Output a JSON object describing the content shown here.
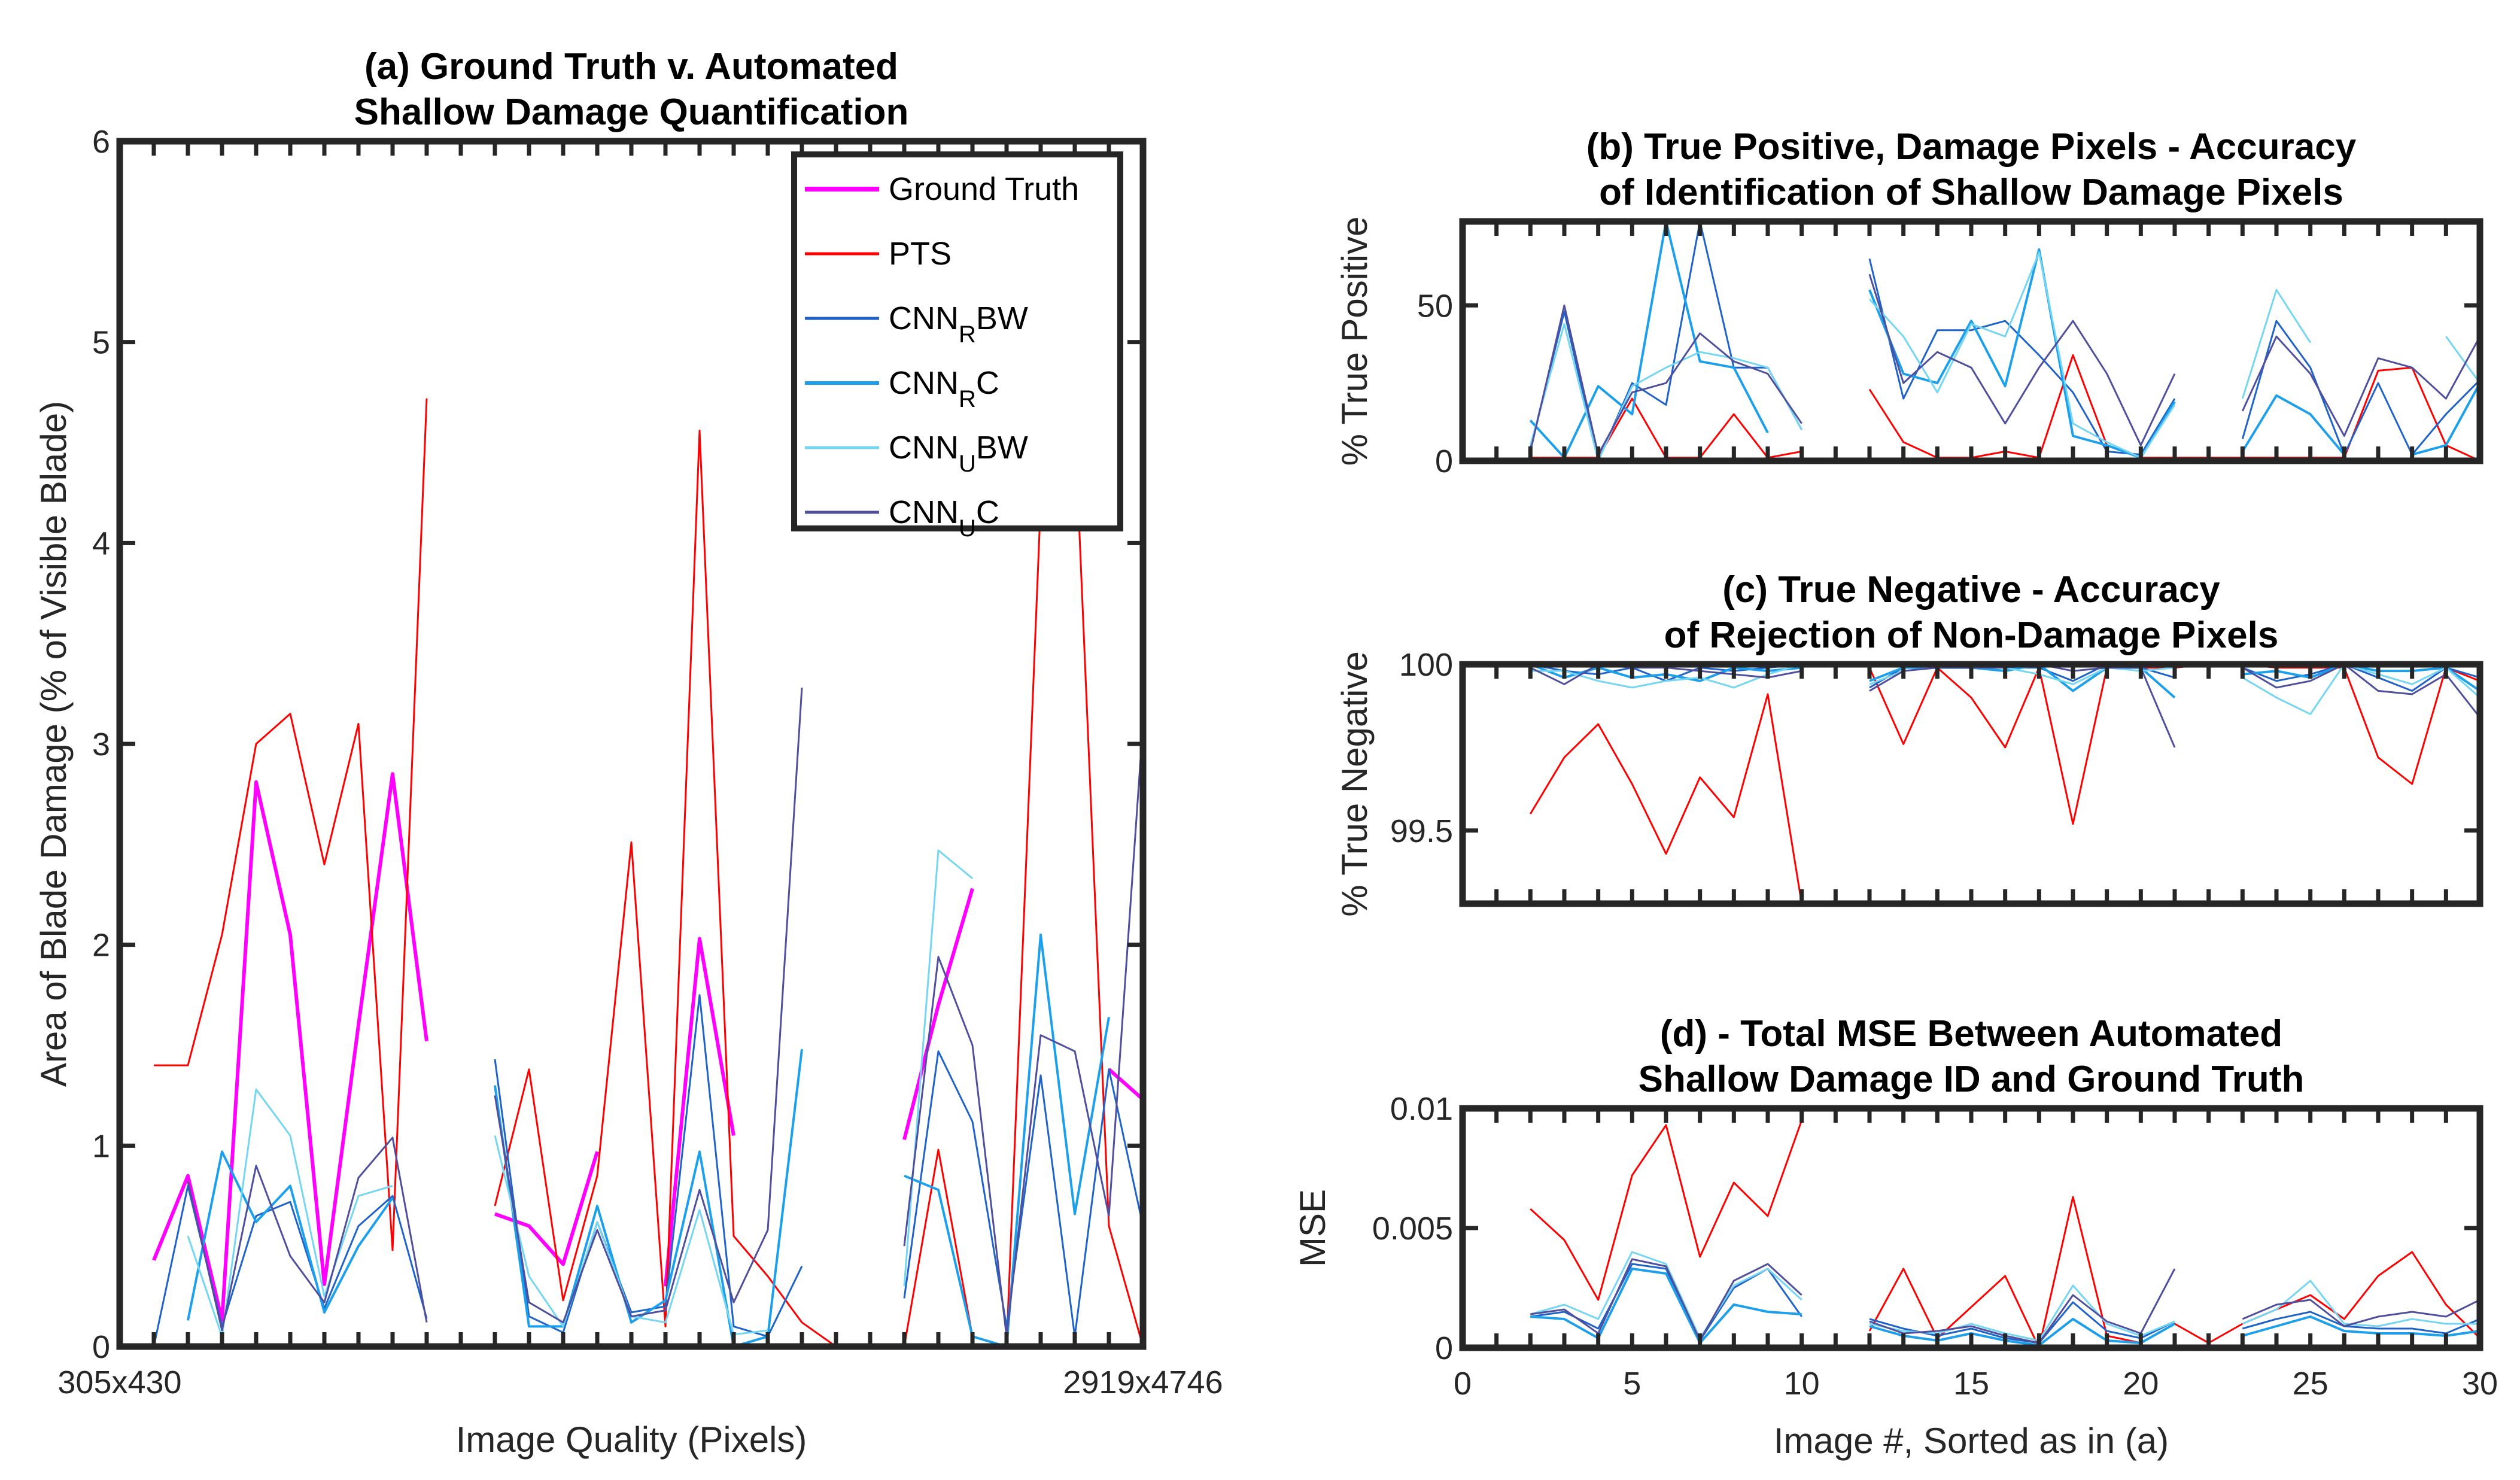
{
  "chart_data": [
    {
      "id": "a",
      "type": "line",
      "title": [
        "(a) Ground Truth v. Automated",
        "Shallow Damage Quantification"
      ],
      "xlabel": "Image Quality (Pixels)",
      "ylabel": "Area of Blade Damage (% of Visible Blade)",
      "xtick_labels": [
        "305x430",
        "2919x4746"
      ],
      "xlim": [
        0,
        30
      ],
      "ylim": [
        0,
        6
      ],
      "yticks": [
        0,
        1,
        2,
        3,
        4,
        5,
        6
      ],
      "legend_position": "top-right",
      "x": [
        1,
        2,
        3,
        4,
        5,
        6,
        7,
        8,
        9,
        10,
        11,
        12,
        13,
        14,
        15,
        16,
        17,
        18,
        19,
        20,
        21,
        22,
        23,
        24,
        25,
        26,
        27,
        28,
        29,
        30
      ],
      "series": [
        {
          "name": "Ground Truth",
          "legend": [
            "Ground Truth",
            ""
          ],
          "color": "#ff00ff",
          "width": 3,
          "values": [
            0.43,
            0.85,
            0.13,
            2.81,
            2.05,
            0.31,
            1.6,
            2.85,
            1.52,
            null,
            0.66,
            0.6,
            0.41,
            0.97,
            null,
            0.3,
            2.03,
            1.05,
            null,
            null,
            null,
            null,
            1.03,
            1.7,
            2.28,
            null,
            null,
            null,
            1.38,
            1.23
          ]
        },
        {
          "name": "PTS",
          "legend": [
            "PTS",
            ""
          ],
          "color": "#ff0000",
          "width": 1.5,
          "values": [
            1.4,
            1.4,
            2.05,
            3.0,
            3.15,
            2.4,
            3.1,
            0.48,
            4.72,
            null,
            0.7,
            1.38,
            0.23,
            0.85,
            2.51,
            0.1,
            4.56,
            0.55,
            0.35,
            0.12,
            0.0,
            0.0,
            0.0,
            0.98,
            0.05,
            0.0,
            4.2,
            4.6,
            0.6,
            0.0
          ]
        },
        {
          "name": "CNN_R BW",
          "legend": [
            "CNN",
            "R",
            "BW"
          ],
          "color": "#1f63c9",
          "width": 1.5,
          "values": [
            0.0,
            0.8,
            0.1,
            0.65,
            0.72,
            0.19,
            0.6,
            0.75,
            0.14,
            null,
            1.43,
            0.15,
            0.07,
            0.62,
            0.17,
            0.2,
            1.75,
            0.1,
            0.05,
            0.4,
            null,
            null,
            0.24,
            1.47,
            1.12,
            0.1,
            1.35,
            0.05,
            1.38,
            0.6
          ]
        },
        {
          "name": "CNN_R C",
          "legend": [
            "CNN",
            "R",
            "C"
          ],
          "color": "#1ca0ec",
          "width": 2,
          "values": [
            null,
            0.13,
            0.97,
            0.62,
            0.8,
            0.17,
            0.5,
            0.74,
            null,
            null,
            1.3,
            0.1,
            0.1,
            0.7,
            0.12,
            0.23,
            0.97,
            0.0,
            0.05,
            1.48,
            null,
            null,
            0.85,
            0.78,
            0.05,
            0.0,
            2.05,
            0.66,
            1.64,
            null
          ]
        },
        {
          "name": "CNN_U BW",
          "legend": [
            "CNN",
            "U",
            "BW"
          ],
          "color": "#74d6f3",
          "width": 1.5,
          "values": [
            null,
            0.55,
            0.05,
            1.28,
            1.05,
            0.25,
            0.75,
            0.8,
            null,
            null,
            1.05,
            0.35,
            0.1,
            0.62,
            0.15,
            0.12,
            0.68,
            0.06,
            0.08,
            null,
            null,
            null,
            0.3,
            2.47,
            2.33,
            null,
            null,
            null,
            null,
            null
          ]
        },
        {
          "name": "CNN_U C",
          "legend": [
            "CNN",
            "U",
            "C"
          ],
          "color": "#4f4f9e",
          "width": 1.5,
          "values": [
            null,
            0.82,
            0.08,
            0.9,
            0.45,
            0.22,
            0.84,
            1.04,
            0.12,
            null,
            1.25,
            0.22,
            0.12,
            0.58,
            0.15,
            0.18,
            0.78,
            0.22,
            0.58,
            3.28,
            null,
            null,
            0.5,
            1.94,
            1.5,
            0.05,
            1.55,
            1.47,
            0.65,
            3.1
          ]
        }
      ]
    },
    {
      "id": "b",
      "type": "line",
      "title": [
        "(b) True Positive, Damage Pixels - Accuracy",
        "of Identification of Shallow Damage Pixels"
      ],
      "xlabel": "",
      "ylabel": "% True Positive",
      "xlim": [
        0,
        30
      ],
      "ylim": [
        0,
        77
      ],
      "yticks": [
        0,
        50
      ],
      "x": [
        1,
        2,
        3,
        4,
        5,
        6,
        7,
        8,
        9,
        10,
        11,
        12,
        13,
        14,
        15,
        16,
        17,
        18,
        19,
        20,
        21,
        22,
        23,
        24,
        25,
        26,
        27,
        28,
        29,
        30
      ],
      "series": [
        {
          "color": "#ff0000",
          "width": 1.5,
          "values": [
            null,
            1,
            1,
            1,
            20,
            1,
            1,
            15,
            1,
            3,
            null,
            23,
            6,
            1,
            1,
            3,
            1,
            34,
            5,
            1,
            1,
            1,
            1,
            1,
            1,
            1,
            29,
            30,
            5,
            0
          ]
        },
        {
          "color": "#1f63c9",
          "width": 1.5,
          "values": [
            null,
            4,
            48,
            0,
            25,
            18,
            77,
            30,
            30,
            10,
            null,
            65,
            20,
            42,
            42,
            45,
            34,
            22,
            3,
            2,
            20,
            null,
            7,
            45,
            30,
            2,
            25,
            2,
            15,
            26
          ]
        },
        {
          "color": "#1ca0ec",
          "width": 2,
          "values": [
            null,
            13,
            1,
            24,
            15,
            77,
            32,
            30,
            9,
            null,
            null,
            55,
            28,
            25,
            45,
            24,
            68,
            8,
            5,
            1,
            19,
            null,
            3,
            21,
            15,
            2,
            null,
            2,
            5,
            25
          ]
        },
        {
          "color": "#74d6f3",
          "width": 1.5,
          "values": [
            null,
            5,
            44,
            0,
            24,
            30,
            35,
            33,
            30,
            10,
            null,
            52,
            40,
            22,
            44,
            40,
            67,
            12,
            6,
            1,
            18,
            null,
            20,
            55,
            38,
            null,
            null,
            null,
            40,
            25
          ]
        },
        {
          "color": "#4f4f9e",
          "width": 1.5,
          "values": [
            null,
            3,
            50,
            2,
            22,
            25,
            41,
            32,
            28,
            12,
            null,
            60,
            25,
            35,
            30,
            12,
            30,
            45,
            28,
            5,
            28,
            null,
            16,
            40,
            28,
            8,
            33,
            30,
            20,
            40
          ]
        }
      ]
    },
    {
      "id": "c",
      "type": "line",
      "title": [
        "(c) True Negative - Accuracy",
        "of Rejection of Non-Damage Pixels"
      ],
      "xlabel": "",
      "ylabel": "% True Negative",
      "xlim": [
        0,
        30
      ],
      "ylim": [
        99.28,
        100
      ],
      "yticks": [
        99.5,
        100
      ],
      "x": [
        1,
        2,
        3,
        4,
        5,
        6,
        7,
        8,
        9,
        10,
        11,
        12,
        13,
        14,
        15,
        16,
        17,
        18,
        19,
        20,
        21,
        22,
        23,
        24,
        25,
        26,
        27,
        28,
        29,
        30
      ],
      "series": [
        {
          "color": "#ff0000",
          "width": 1.5,
          "values": [
            null,
            99.55,
            99.72,
            99.82,
            99.64,
            99.43,
            99.66,
            99.54,
            99.91,
            99.28,
            null,
            99.99,
            99.76,
            99.99,
            99.9,
            99.75,
            99.99,
            99.52,
            99.99,
            99.99,
            99.99,
            100,
            100,
            99.99,
            99.99,
            99.99,
            99.72,
            99.64,
            99.99,
            99.95
          ]
        },
        {
          "color": "#1f63c9",
          "width": 1.5,
          "values": [
            null,
            100,
            99.98,
            99.97,
            99.99,
            99.95,
            99.99,
            99.98,
            99.99,
            100,
            null,
            99.93,
            99.99,
            100,
            99.99,
            99.99,
            99.99,
            99.95,
            100,
            99.99,
            99.96,
            null,
            99.99,
            99.95,
            99.97,
            100,
            99.96,
            99.92,
            99.99,
            99.96
          ]
        },
        {
          "color": "#1ca0ec",
          "width": 2,
          "values": [
            null,
            100,
            99.96,
            99.99,
            99.96,
            99.97,
            99.95,
            99.99,
            99.98,
            99.99,
            null,
            99.95,
            99.99,
            99.99,
            99.99,
            99.98,
            100,
            99.92,
            99.99,
            99.99,
            99.9,
            null,
            99.97,
            99.98,
            99.96,
            100,
            99.98,
            99.98,
            99.99,
            99.92
          ]
        },
        {
          "color": "#74d6f3",
          "width": 1.5,
          "values": [
            null,
            99.98,
            99.98,
            99.95,
            99.93,
            99.95,
            99.96,
            99.93,
            99.97,
            100,
            null,
            99.94,
            99.98,
            99.99,
            100,
            99.99,
            99.97,
            99.94,
            99.99,
            99.98,
            99.99,
            null,
            99.96,
            99.9,
            99.85,
            100,
            99.97,
            99.94,
            99.99,
            99.9
          ]
        },
        {
          "color": "#4f4f9e",
          "width": 1.5,
          "values": [
            null,
            99.99,
            99.94,
            100,
            99.99,
            99.99,
            99.98,
            99.97,
            99.96,
            99.98,
            null,
            99.92,
            99.98,
            99.99,
            99.99,
            99.99,
            100,
            99.98,
            99.99,
            99.99,
            99.75,
            null,
            99.99,
            99.93,
            99.95,
            100,
            99.92,
            99.91,
            99.97,
            99.84
          ]
        }
      ]
    },
    {
      "id": "d",
      "type": "line",
      "title": [
        "(d) - Total MSE Between Automated",
        "Shallow Damage ID and Ground Truth"
      ],
      "xlabel": "Image #, Sorted as in (a)",
      "ylabel": "MSE",
      "xlim": [
        0,
        30
      ],
      "ylim": [
        0,
        0.01
      ],
      "yticks": [
        0,
        0.005,
        0.01
      ],
      "ytick_labels": [
        "0",
        "0.005",
        "0.01"
      ],
      "xticks": [
        0,
        5,
        10,
        15,
        20,
        25,
        30
      ],
      "x": [
        1,
        2,
        3,
        4,
        5,
        6,
        7,
        8,
        9,
        10,
        11,
        12,
        13,
        14,
        15,
        16,
        17,
        18,
        19,
        20,
        21,
        22,
        23,
        24,
        25,
        26,
        27,
        28,
        29,
        30
      ],
      "series": [
        {
          "color": "#ff0000",
          "width": 1.5,
          "values": [
            null,
            0.0058,
            0.0045,
            0.002,
            0.0072,
            0.0093,
            0.0038,
            0.0069,
            0.0055,
            0.0095,
            null,
            0.0007,
            0.0033,
            0.0004,
            0.0017,
            0.003,
            0.0,
            0.0063,
            0.0005,
            0.0002,
            0.001,
            0.0002,
            0.001,
            0.0016,
            0.0022,
            0.0012,
            0.003,
            0.004,
            0.0018,
            0.0004
          ]
        },
        {
          "color": "#1f63c9",
          "width": 1.5,
          "values": [
            null,
            0.0013,
            0.0015,
            0.0008,
            0.0035,
            0.0033,
            0.0003,
            0.0025,
            0.0033,
            0.0013,
            null,
            0.0012,
            0.0008,
            0.0005,
            0.0008,
            0.0004,
            0.0002,
            0.0019,
            0.0007,
            0.0004,
            0.0011,
            null,
            0.0008,
            0.0012,
            0.0015,
            0.0009,
            0.0008,
            0.0008,
            0.0006,
            0.0012
          ]
        },
        {
          "color": "#1ca0ec",
          "width": 2,
          "values": [
            null,
            0.0013,
            0.0012,
            0.0004,
            0.0033,
            0.0031,
            0.0002,
            0.0018,
            0.0015,
            0.0014,
            null,
            0.0009,
            0.0005,
            0.0003,
            0.0006,
            0.0003,
            0.0001,
            0.0012,
            0.0003,
            0.0002,
            0.001,
            null,
            0.0005,
            0.0009,
            0.0013,
            0.0007,
            0.0006,
            0.0006,
            0.0005,
            0.0007
          ]
        },
        {
          "color": "#74d6f3",
          "width": 1.5,
          "values": [
            null,
            0.0014,
            0.0018,
            0.0012,
            0.004,
            0.0035,
            0.0004,
            0.0026,
            0.0033,
            0.002,
            null,
            0.001,
            0.0007,
            0.0006,
            0.001,
            0.0006,
            0.0003,
            0.0026,
            0.001,
            0.0005,
            0.0011,
            null,
            0.001,
            0.0016,
            0.0028,
            0.001,
            0.0009,
            0.0012,
            0.001,
            0.001
          ]
        },
        {
          "color": "#4f4f9e",
          "width": 1.5,
          "values": [
            null,
            0.0014,
            0.0016,
            0.0006,
            0.0037,
            0.0034,
            0.0003,
            0.0028,
            0.0035,
            0.0022,
            null,
            0.0011,
            0.0006,
            0.0007,
            0.0009,
            0.0005,
            0.0002,
            0.0022,
            0.0011,
            0.0006,
            0.0033,
            null,
            0.0012,
            0.0018,
            0.002,
            0.0009,
            0.0013,
            0.0015,
            0.0013,
            0.002
          ]
        }
      ]
    }
  ]
}
